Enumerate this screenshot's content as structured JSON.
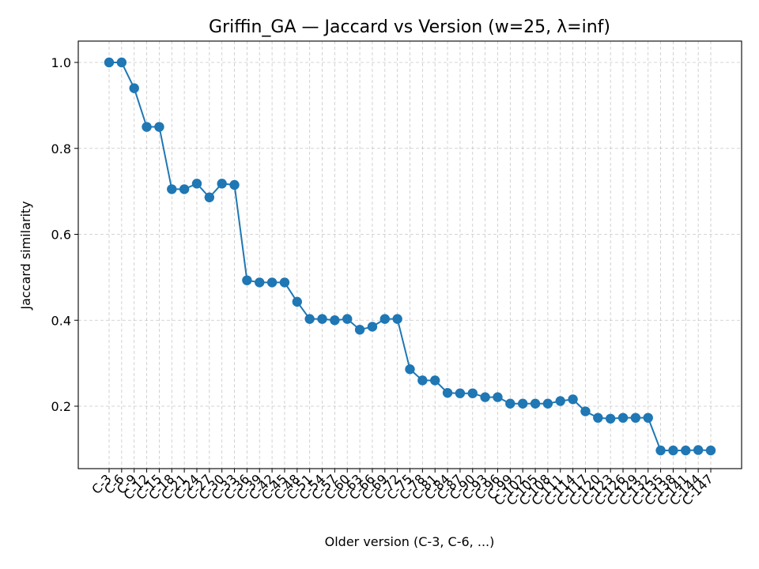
{
  "chart_data": {
    "type": "line",
    "title": "Griffin_GA — Jaccard vs Version (w=25, λ=inf)",
    "xlabel": "Older version (C-3, C-6, ...)",
    "ylabel": "Jaccard similarity",
    "grid": true,
    "color": "#1f77b4",
    "categories": [
      "C-3",
      "C-6",
      "C-9",
      "C-12",
      "C-15",
      "C-18",
      "C-21",
      "C-24",
      "C-27",
      "C-30",
      "C-33",
      "C-36",
      "C-39",
      "C-42",
      "C-45",
      "C-48",
      "C-51",
      "C-54",
      "C-57",
      "C-60",
      "C-63",
      "C-66",
      "C-69",
      "C-72",
      "C-75",
      "C-78",
      "C-81",
      "C-84",
      "C-87",
      "C-90",
      "C-93",
      "C-96",
      "C-99",
      "C-102",
      "C-105",
      "C-108",
      "C-111",
      "C-114",
      "C-117",
      "C-120",
      "C-123",
      "C-126",
      "C-129",
      "C-132",
      "C-135",
      "C-138",
      "C-141",
      "C-144",
      "C-147"
    ],
    "ylim": [
      0.05,
      1.05
    ],
    "yticks": [
      0.2,
      0.4,
      0.6,
      0.8,
      1.0
    ],
    "ytick_labels": [
      "0.2",
      "0.4",
      "0.6",
      "0.8",
      "1.0"
    ],
    "series": [
      {
        "values": [
          1.0,
          1.0,
          0.94,
          0.85,
          0.85,
          0.705,
          0.705,
          0.718,
          0.686,
          0.718,
          0.715,
          0.493,
          0.488,
          0.488,
          0.488,
          0.443,
          0.403,
          0.403,
          0.4,
          0.403,
          0.378,
          0.385,
          0.403,
          0.403,
          0.286,
          0.26,
          0.26,
          0.231,
          0.23,
          0.23,
          0.221,
          0.221,
          0.206,
          0.206,
          0.206,
          0.206,
          0.212,
          0.216,
          0.188,
          0.173,
          0.171,
          0.173,
          0.173,
          0.173,
          0.097,
          0.097,
          0.097,
          0.098,
          0.097
        ]
      }
    ]
  }
}
